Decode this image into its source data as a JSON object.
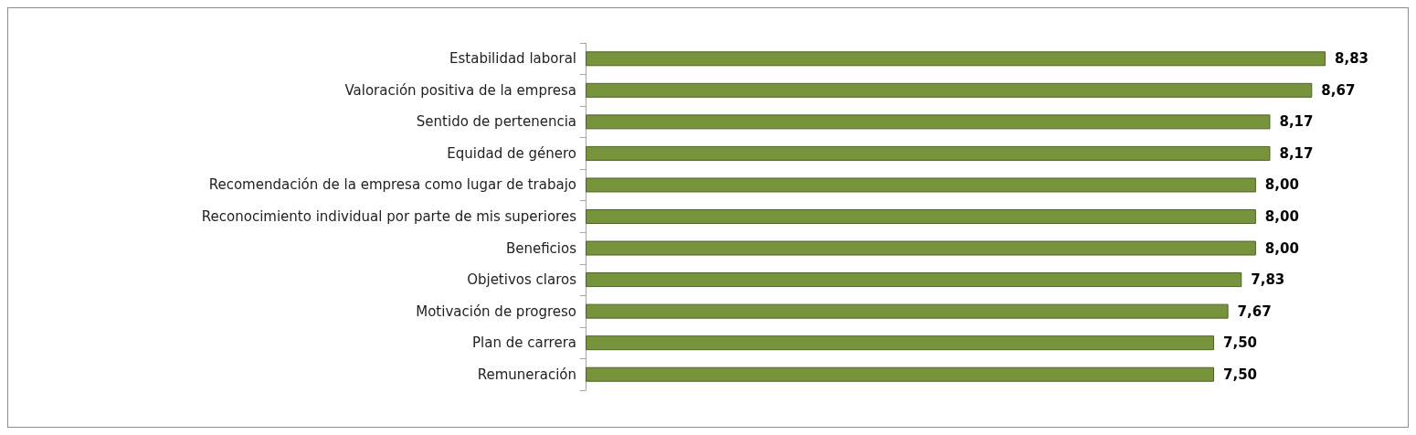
{
  "chart_data": {
    "type": "bar",
    "orientation": "horizontal",
    "categories": [
      "Estabilidad laboral",
      "Valoración positiva de la empresa",
      "Sentido de pertenencia",
      "Equidad de género",
      "Recomendación de la empresa como lugar de trabajo",
      "Reconocimiento individual por parte de mis superiores",
      "Beneficios",
      "Objetivos claros",
      "Motivación de progreso",
      "Plan de carrera",
      "Remuneración"
    ],
    "values": [
      8.83,
      8.67,
      8.17,
      8.17,
      8.0,
      8.0,
      8.0,
      7.83,
      7.67,
      7.5,
      7.5
    ],
    "value_labels": [
      "8,83",
      "8,67",
      "8,17",
      "8,17",
      "8,00",
      "8,00",
      "8,00",
      "7,83",
      "7,67",
      "7,50",
      "7,50"
    ],
    "color": "#77933c",
    "tick_labels": "y",
    "grid": false
  }
}
